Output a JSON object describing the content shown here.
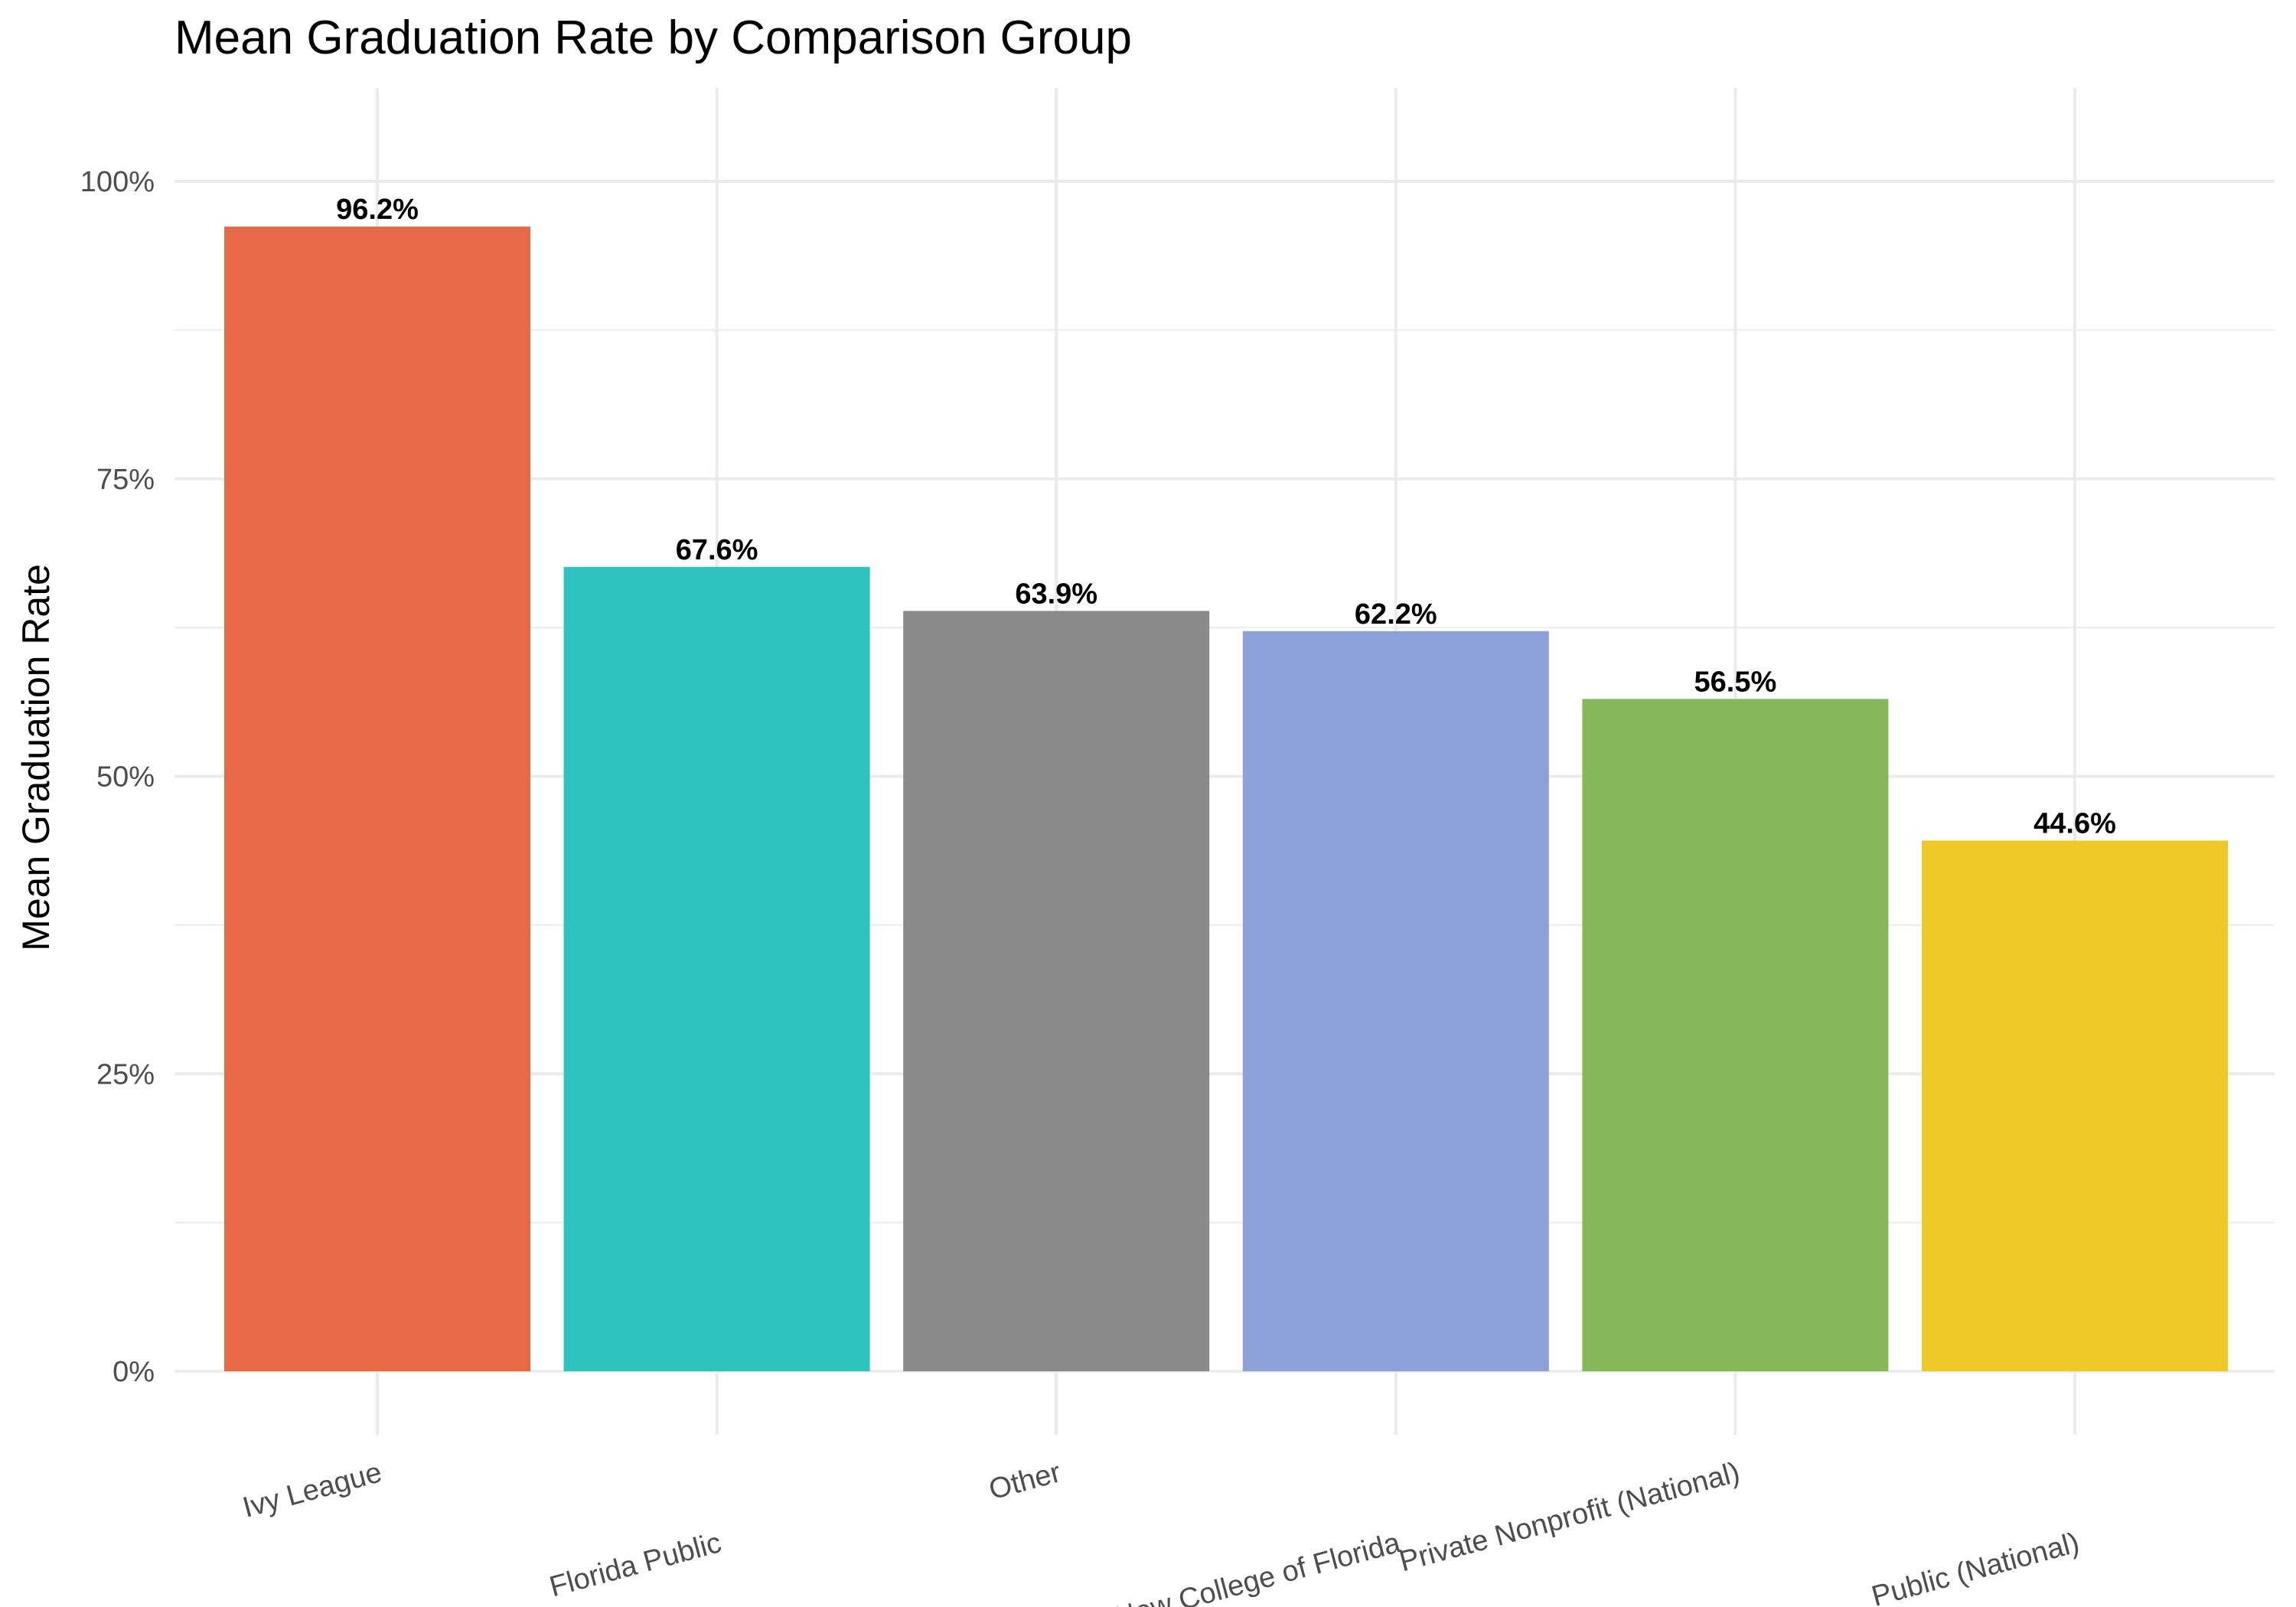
{
  "chart_data": {
    "type": "bar",
    "title": "Mean Graduation Rate by Comparison Group",
    "xlabel": "",
    "ylabel": "Mean Graduation Rate",
    "categories": [
      "Ivy League",
      "Florida Public",
      "Other",
      "New College of Florida",
      "Private Nonprofit (National)",
      "Public (National)"
    ],
    "values": [
      96.2,
      67.6,
      63.9,
      62.2,
      56.5,
      44.6
    ],
    "value_labels": [
      "96.2%",
      "67.6%",
      "63.9%",
      "62.2%",
      "56.5%",
      "44.6%"
    ],
    "colors": [
      "#e66a45",
      "#2fc3c0",
      "#8a8a8a",
      "#8ea0d8",
      "#84b858",
      "#efc928"
    ],
    "ylim": [
      0,
      100
    ],
    "yticks": [
      0,
      25,
      50,
      75,
      100
    ],
    "ytick_labels": [
      "0%",
      "25%",
      "50%",
      "75%",
      "100%"
    ],
    "grid": true,
    "legend": "none"
  }
}
